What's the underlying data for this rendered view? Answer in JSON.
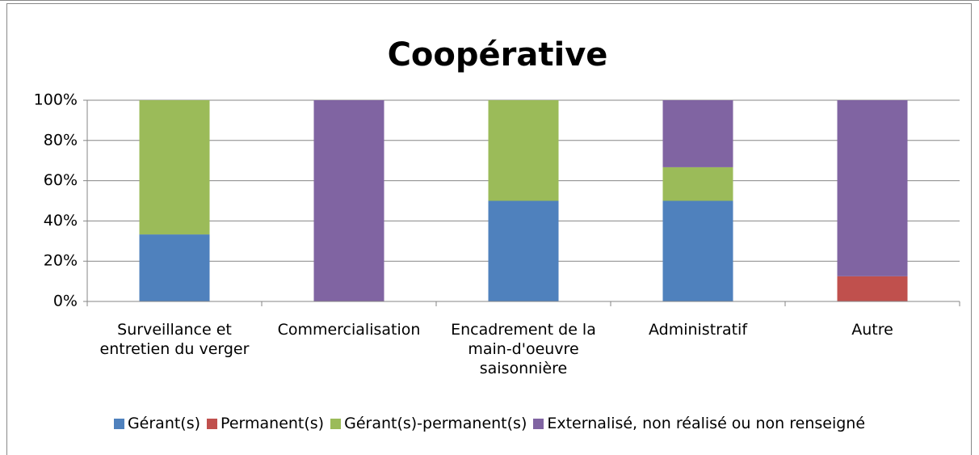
{
  "chart_data": {
    "type": "stacked_bar",
    "title": "Coopérative",
    "categories": [
      "Surveillance et entretien du verger",
      "Commercialisation",
      "Encadrement de la main-d'oeuvre saisonnière",
      "Administratif",
      "Autre"
    ],
    "series": [
      {
        "name": "Gérant(s)",
        "color": "#4f81bd",
        "values": [
          33.3,
          0,
          50,
          50,
          0
        ]
      },
      {
        "name": "Permanent(s)",
        "color": "#c0504d",
        "values": [
          0,
          0,
          0,
          0,
          12.5
        ]
      },
      {
        "name": "Gérant(s)-permanent(s)",
        "color": "#9bbb59",
        "values": [
          66.7,
          0,
          50,
          16.7,
          0
        ]
      },
      {
        "name": "Externalisé, non réalisé ou non renseigné",
        "color": "#8064a2",
        "values": [
          0,
          100,
          0,
          33.3,
          87.5
        ]
      }
    ],
    "ylim": [
      0,
      100
    ],
    "yticks": [
      {
        "value": 0,
        "label": "0%"
      },
      {
        "value": 20,
        "label": "20%"
      },
      {
        "value": 40,
        "label": "40%"
      },
      {
        "value": 60,
        "label": "60%"
      },
      {
        "value": 80,
        "label": "80%"
      },
      {
        "value": 100,
        "label": "100%"
      }
    ],
    "grid": true,
    "legend": "bottom"
  }
}
